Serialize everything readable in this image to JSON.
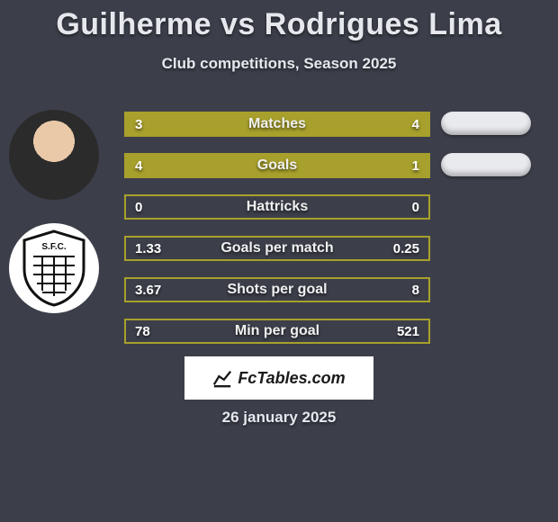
{
  "title": "Guilherme vs Rodrigues Lima",
  "subtitle": "Club competitions, Season 2025",
  "date": "26 january 2025",
  "logo_text": "FcTables.com",
  "background_color": "#3c3f4a",
  "text_color": "#e6e8ee",
  "bar_border_color": "#a8a02c",
  "bar_fill_color": "#a8a02c",
  "bar_empty_color": "transparent",
  "pill_colors": [
    "#e9eaee",
    "#e9eaee"
  ],
  "stats": [
    {
      "label": "Matches",
      "left_val": "3",
      "right_val": "4",
      "left_pct": 42,
      "right_pct": 58
    },
    {
      "label": "Goals",
      "left_val": "4",
      "right_val": "1",
      "left_pct": 80,
      "right_pct": 20
    },
    {
      "label": "Hattricks",
      "left_val": "0",
      "right_val": "0",
      "left_pct": 0,
      "right_pct": 0
    },
    {
      "label": "Goals per match",
      "left_val": "1.33",
      "right_val": "0.25",
      "left_pct": 0,
      "right_pct": 0
    },
    {
      "label": "Shots per goal",
      "left_val": "3.67",
      "right_val": "8",
      "left_pct": 0,
      "right_pct": 0
    },
    {
      "label": "Min per goal",
      "left_val": "78",
      "right_val": "521",
      "left_pct": 0,
      "right_pct": 0
    }
  ],
  "bar_label_fontsize": 16,
  "bar_value_fontsize": 15,
  "title_fontsize": 34,
  "subtitle_fontsize": 17
}
